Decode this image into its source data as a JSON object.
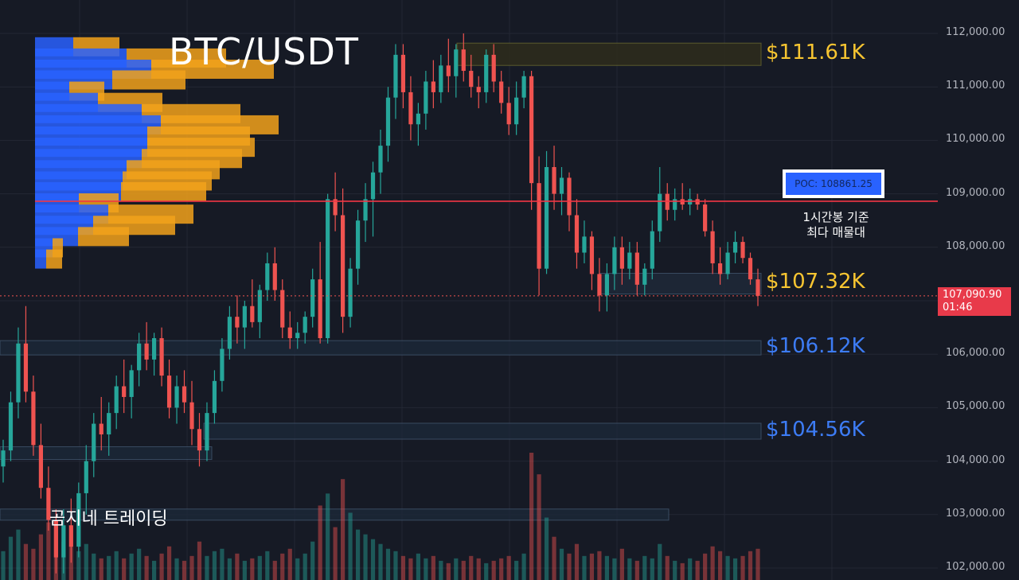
{
  "title": "BTC/USDT",
  "watermark": "곰지네 트레이딩",
  "poc": {
    "label": "POC: 108861.25",
    "note": "1시간봉 기준\n최다 매물대",
    "price": 108861.25
  },
  "current_price": {
    "price": "107,090.90",
    "countdown": "01:46",
    "value": 107090.9
  },
  "levels": [
    {
      "label": "$111.61K",
      "price": 111610,
      "color": "#f7c531",
      "kind": "resistance"
    },
    {
      "label": "$107.32K",
      "price": 107320,
      "color": "#f7c531",
      "kind": "resistance"
    },
    {
      "label": "$106.12K",
      "price": 106120,
      "color": "#3d7cf5",
      "kind": "support"
    },
    {
      "label": "$104.56K",
      "price": 104560,
      "color": "#3d7cf5",
      "kind": "support"
    }
  ],
  "colors": {
    "background": "#161a25",
    "up": "#26a69a",
    "down": "#ef5350",
    "poc_line": "#f23645",
    "vp_buy": "#2962ff",
    "vp_sell": "#f2a21b",
    "grid": "#232734"
  },
  "chart_data": {
    "type": "candlestick",
    "title": "BTC/USDT",
    "timeframe": "1h",
    "ylim": [
      101800,
      112300
    ],
    "y_axis": {
      "ticks": [
        112000,
        111000,
        110000,
        109000,
        108000,
        107000,
        106000,
        105000,
        104000,
        103000,
        102000
      ],
      "tick_labels": [
        "112,000.00",
        "111,000.00",
        "110,000.00",
        "109,000.00",
        "108,000.00",
        "107,000.00",
        "106,000.00",
        "105,000.00",
        "104,000.00",
        "103,000.00",
        "102,000.00"
      ]
    },
    "grid": true,
    "candles": [
      [
        103900,
        104400,
        103600,
        104200
      ],
      [
        104200,
        105300,
        104000,
        105100
      ],
      [
        105100,
        106500,
        104800,
        106200
      ],
      [
        106200,
        106900,
        105100,
        105300
      ],
      [
        105300,
        105600,
        104100,
        104300
      ],
      [
        104300,
        104700,
        103300,
        103500
      ],
      [
        103500,
        103900,
        102700,
        102900
      ],
      [
        102900,
        103100,
        101900,
        102200
      ],
      [
        102200,
        103100,
        101900,
        102800
      ],
      [
        102800,
        103300,
        102100,
        102400
      ],
      [
        102400,
        103600,
        102200,
        103400
      ],
      [
        103400,
        104300,
        103000,
        104000
      ],
      [
        104000,
        104900,
        103700,
        104700
      ],
      [
        104700,
        105200,
        104200,
        104500
      ],
      [
        104500,
        105100,
        104100,
        104900
      ],
      [
        104900,
        105600,
        104600,
        105400
      ],
      [
        105400,
        105900,
        104900,
        105200
      ],
      [
        105200,
        105800,
        104800,
        105700
      ],
      [
        105700,
        106400,
        105400,
        106200
      ],
      [
        106200,
        106600,
        105700,
        105900
      ],
      [
        105900,
        106400,
        105600,
        106300
      ],
      [
        106300,
        106500,
        105400,
        105600
      ],
      [
        105600,
        105900,
        104800,
        105000
      ],
      [
        105000,
        105600,
        104700,
        105400
      ],
      [
        105400,
        105700,
        104900,
        105100
      ],
      [
        105100,
        105500,
        104300,
        104600
      ],
      [
        104600,
        104900,
        103900,
        104200
      ],
      [
        104200,
        105100,
        104000,
        104900
      ],
      [
        104900,
        105700,
        104700,
        105500
      ],
      [
        105500,
        106300,
        105300,
        106100
      ],
      [
        106100,
        106900,
        105900,
        106700
      ],
      [
        106700,
        107100,
        106200,
        106500
      ],
      [
        106500,
        107000,
        106100,
        106900
      ],
      [
        106900,
        107400,
        106500,
        106600
      ],
      [
        106600,
        107300,
        106300,
        107200
      ],
      [
        107200,
        107900,
        107000,
        107700
      ],
      [
        107700,
        108000,
        107000,
        107200
      ],
      [
        107200,
        107400,
        106300,
        106500
      ],
      [
        106500,
        106800,
        106100,
        106300
      ],
      [
        106300,
        106600,
        106100,
        106400
      ],
      [
        106400,
        106800,
        106200,
        106700
      ],
      [
        106700,
        107600,
        106500,
        107400
      ],
      [
        107400,
        108100,
        106200,
        106300
      ],
      [
        106300,
        109000,
        106200,
        108900
      ],
      [
        108900,
        109400,
        108300,
        108600
      ],
      [
        108600,
        109100,
        106400,
        106700
      ],
      [
        106700,
        107800,
        106500,
        107600
      ],
      [
        107600,
        108700,
        107300,
        108500
      ],
      [
        108500,
        109200,
        108100,
        108900
      ],
      [
        108900,
        109600,
        108200,
        109400
      ],
      [
        109400,
        110200,
        109000,
        109900
      ],
      [
        109900,
        111000,
        109600,
        110800
      ],
      [
        110800,
        111800,
        110400,
        111600
      ],
      [
        111600,
        111800,
        110600,
        110900
      ],
      [
        110900,
        111200,
        110000,
        110300
      ],
      [
        110300,
        110700,
        109900,
        110500
      ],
      [
        110500,
        111300,
        110200,
        111100
      ],
      [
        111100,
        111500,
        110600,
        110900
      ],
      [
        110900,
        111600,
        110700,
        111400
      ],
      [
        111400,
        111900,
        110900,
        111200
      ],
      [
        111200,
        111800,
        110800,
        111700
      ],
      [
        111700,
        112000,
        111100,
        111300
      ],
      [
        111300,
        111600,
        110800,
        111000
      ],
      [
        111000,
        111200,
        110600,
        110900
      ],
      [
        110900,
        111700,
        110700,
        111600
      ],
      [
        111600,
        111800,
        110900,
        111100
      ],
      [
        111100,
        111300,
        110500,
        110700
      ],
      [
        110700,
        111000,
        110100,
        110300
      ],
      [
        110300,
        111100,
        110100,
        110800
      ],
      [
        110800,
        111300,
        110600,
        111200
      ],
      [
        111200,
        111300,
        108700,
        109200
      ],
      [
        109200,
        109700,
        107100,
        107600
      ],
      [
        107600,
        109800,
        107500,
        109500
      ],
      [
        109500,
        109900,
        108700,
        109000
      ],
      [
        109000,
        109500,
        108600,
        109300
      ],
      [
        109300,
        109400,
        108300,
        108600
      ],
      [
        108600,
        108900,
        107600,
        107900
      ],
      [
        107900,
        108500,
        107700,
        108200
      ],
      [
        108200,
        108300,
        107200,
        107500
      ],
      [
        107500,
        107800,
        106800,
        107100
      ],
      [
        107100,
        107700,
        106800,
        107500
      ],
      [
        107500,
        108200,
        107200,
        108000
      ],
      [
        108000,
        108200,
        107300,
        107600
      ],
      [
        107600,
        108100,
        107400,
        107900
      ],
      [
        107900,
        108100,
        107100,
        107300
      ],
      [
        107300,
        107700,
        107100,
        107600
      ],
      [
        107600,
        108500,
        107400,
        108300
      ],
      [
        108300,
        109500,
        108100,
        109000
      ],
      [
        109000,
        109200,
        108500,
        108700
      ],
      [
        108700,
        109100,
        108500,
        108900
      ],
      [
        108900,
        109200,
        108700,
        108800
      ],
      [
        108800,
        109100,
        108600,
        108900
      ],
      [
        108900,
        109000,
        108700,
        108800
      ],
      [
        108800,
        108900,
        108200,
        108300
      ],
      [
        108300,
        108500,
        107500,
        107700
      ],
      [
        107700,
        108000,
        107300,
        107500
      ],
      [
        107500,
        108100,
        107400,
        107900
      ],
      [
        107900,
        108300,
        107700,
        108100
      ],
      [
        108100,
        108200,
        107700,
        107800
      ],
      [
        107800,
        107900,
        107300,
        107400
      ],
      [
        107400,
        107600,
        106900,
        107090.9
      ]
    ],
    "volume": [
      1.2,
      1.8,
      2.1,
      1.5,
      1.3,
      1.9,
      2.4,
      2.2,
      1.6,
      1.4,
      1.2,
      1.5,
      1.1,
      0.9,
      1.0,
      1.2,
      0.9,
      1.1,
      1.3,
      1.0,
      0.8,
      1.1,
      1.4,
      0.9,
      0.8,
      1.0,
      1.6,
      1.0,
      1.2,
      1.3,
      0.9,
      1.1,
      0.8,
      0.9,
      1.0,
      1.2,
      0.8,
      1.1,
      1.3,
      0.9,
      1.1,
      1.6,
      3.1,
      3.6,
      2.2,
      4.2,
      2.8,
      2.1,
      1.9,
      1.7,
      1.5,
      1.3,
      1.2,
      1.0,
      0.9,
      1.1,
      0.9,
      1.0,
      0.8,
      0.7,
      0.9,
      0.8,
      1.0,
      0.9,
      0.7,
      0.8,
      0.9,
      1.0,
      0.8,
      1.1,
      5.3,
      4.4,
      2.6,
      1.8,
      1.3,
      1.1,
      1.5,
      1.0,
      1.1,
      1.2,
      1.0,
      0.9,
      1.3,
      0.9,
      0.8,
      1.0,
      0.9,
      1.5,
      1.0,
      0.8,
      0.7,
      0.9,
      0.8,
      1.1,
      1.4,
      1.2,
      1.0,
      0.9,
      1.0,
      1.2,
      1.3
    ],
    "volume_profile": {
      "bins": [
        {
          "price": 111750,
          "buy": 48,
          "sell": 58
        },
        {
          "price": 111540,
          "buy": 115,
          "sell": 125
        },
        {
          "price": 111330,
          "buy": 146,
          "sell": 154
        },
        {
          "price": 111130,
          "buy": 97,
          "sell": 92
        },
        {
          "price": 110920,
          "buy": 43,
          "sell": 44
        },
        {
          "price": 110710,
          "buy": 79,
          "sell": 81
        },
        {
          "price": 110500,
          "buy": 134,
          "sell": 124
        },
        {
          "price": 110290,
          "buy": 158,
          "sell": 148
        },
        {
          "price": 110080,
          "buy": 141,
          "sell": 129
        },
        {
          "price": 109870,
          "buy": 141,
          "sell": 135
        },
        {
          "price": 109660,
          "buy": 134,
          "sell": 126
        },
        {
          "price": 109450,
          "buy": 115,
          "sell": 117
        },
        {
          "price": 109240,
          "buy": 110,
          "sell": 112
        },
        {
          "price": 109040,
          "buy": 108,
          "sell": 107
        },
        {
          "price": 108830,
          "buy": 55,
          "sell": 50
        },
        {
          "price": 108620,
          "buy": 92,
          "sell": 107
        },
        {
          "price": 108410,
          "buy": 73,
          "sell": 103
        },
        {
          "price": 108200,
          "buy": 54,
          "sell": 64
        },
        {
          "price": 107990,
          "buy": 22,
          "sell": 13
        },
        {
          "price": 107780,
          "buy": 14,
          "sell": 20
        },
        {
          "price": 107570,
          "buy": 0,
          "sell": 0
        },
        {
          "price": 107360,
          "buy": 0,
          "sell": 0
        },
        {
          "price": 107150,
          "buy": 0,
          "sell": 0
        },
        {
          "price": 106950,
          "buy": 0,
          "sell": 0
        },
        {
          "price": 106740,
          "buy": 0,
          "sell": 0
        },
        {
          "price": 106530,
          "buy": 0,
          "sell": 0
        },
        {
          "price": 106320,
          "buy": 0,
          "sell": 0
        }
      ],
      "poc_price": 108861.25
    }
  }
}
